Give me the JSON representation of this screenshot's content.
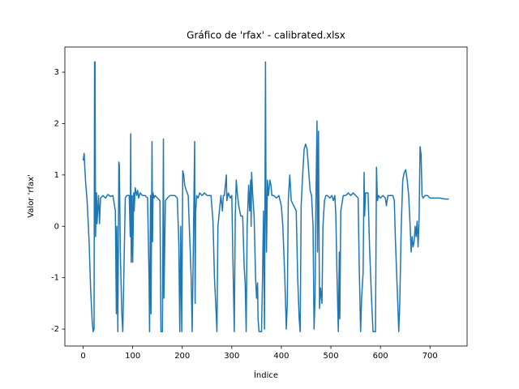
{
  "chart_data": {
    "type": "line",
    "title": "Gráfico de 'rfax' - calibrated.xlsx",
    "xlabel": "Índice",
    "ylabel": "Valor 'rfax'",
    "xlim": [
      -36.9,
      774.9
    ],
    "ylim": [
      -2.33,
      3.49
    ],
    "xticks": [
      0,
      100,
      200,
      300,
      400,
      500,
      600,
      700
    ],
    "yticks": [
      -2,
      -1,
      0,
      1,
      2,
      3
    ],
    "grid": false,
    "series": [
      {
        "color": "#1f77b4",
        "x": [
          0,
          2,
          3,
          5,
          8,
          12,
          15,
          18,
          20,
          22,
          23,
          24,
          25,
          27,
          28,
          31,
          33,
          35,
          40,
          45,
          50,
          55,
          60,
          65,
          67,
          68,
          70,
          72,
          73,
          75,
          78,
          80,
          85,
          88,
          93,
          95,
          96,
          97,
          99,
          100,
          102,
          103,
          105,
          108,
          110,
          112,
          115,
          120,
          125,
          130,
          133,
          134,
          136,
          137,
          139,
          140,
          141,
          143,
          145,
          150,
          155,
          157,
          160,
          162,
          163,
          166,
          170,
          175,
          180,
          185,
          190,
          193,
          195,
          197,
          199,
          201,
          203,
          205,
          208,
          212,
          215,
          218,
          220,
          222,
          225,
          226,
          227,
          229,
          232,
          235,
          240,
          245,
          250,
          255,
          258,
          262,
          265,
          268,
          270,
          272,
          275,
          278,
          281,
          283,
          285,
          289,
          290,
          293,
          297,
          300,
          302,
          305,
          307,
          309,
          311,
          314,
          318,
          322,
          325,
          327,
          329,
          331,
          334,
          336,
          338,
          339,
          340,
          342,
          345,
          348,
          350,
          352,
          353,
          355,
          360,
          362,
          364,
          366,
          368,
          369,
          370,
          372,
          374,
          377,
          379,
          381,
          385,
          390,
          395,
          400,
          403,
          407,
          410,
          412,
          414,
          417,
          420,
          425,
          430,
          433,
          436,
          438,
          440,
          443,
          446,
          449,
          452,
          455,
          458,
          461,
          464,
          466,
          468,
          470,
          472,
          473,
          475,
          476,
          477,
          479,
          482,
          484,
          487,
          490,
          493,
          498,
          502,
          505,
          508,
          510,
          512,
          515,
          517,
          518,
          520,
          525,
          530,
          535,
          540,
          545,
          550,
          555,
          557,
          560,
          562,
          565,
          567,
          568,
          570,
          575,
          578,
          582,
          585,
          590,
          592,
          594,
          596,
          600,
          605,
          610,
          612,
          615,
          620,
          625,
          628,
          630,
          633,
          635,
          637,
          639,
          642,
          645,
          648,
          651,
          654,
          657,
          660,
          662,
          664,
          666,
          668,
          670,
          672,
          674,
          676,
          678,
          680,
          682,
          684,
          686,
          690,
          695,
          700,
          705,
          710,
          720,
          730,
          738
        ],
        "values": [
          1.28,
          1.42,
          1.2,
          0.85,
          0.5,
          -0.3,
          -1.2,
          -1.8,
          -2.05,
          -2.0,
          3.2,
          3.2,
          -0.2,
          0.65,
          0.05,
          0.6,
          0.05,
          0.55,
          0.6,
          0.55,
          0.62,
          0.58,
          0.6,
          0.3,
          -1.7,
          0.0,
          -2.05,
          1.25,
          1.2,
          -0.5,
          -1.7,
          -2.05,
          0.55,
          0.6,
          0.6,
          -0.2,
          1.8,
          -0.7,
          0.6,
          -0.7,
          0.65,
          0.3,
          0.75,
          0.6,
          0.7,
          0.55,
          0.65,
          0.6,
          0.6,
          0.55,
          -1.0,
          -2.05,
          0.6,
          -1.7,
          1.65,
          -0.3,
          0.65,
          0.55,
          0.6,
          0.55,
          0.5,
          -2.05,
          -2.05,
          1.7,
          -1.4,
          0.5,
          0.55,
          0.6,
          0.6,
          0.6,
          0.55,
          -0.3,
          -2.05,
          0.0,
          -2.05,
          1.08,
          1.0,
          0.8,
          0.7,
          0.6,
          -0.2,
          -1.0,
          -2.05,
          -0.7,
          1.65,
          -1.5,
          0.25,
          0.6,
          0.55,
          0.65,
          0.6,
          0.65,
          0.6,
          0.6,
          0.6,
          0.1,
          -1.0,
          -1.6,
          -2.05,
          0.0,
          0.3,
          0.6,
          0.3,
          0.6,
          0.6,
          1.0,
          0.5,
          0.65,
          0.55,
          0.6,
          -0.5,
          -2.05,
          0.2,
          0.9,
          0.65,
          0.4,
          0.2,
          0.2,
          -0.8,
          -1.1,
          -2.05,
          0.0,
          0.8,
          0.3,
          0.9,
          0.0,
          1.05,
          0.65,
          0.2,
          -1.0,
          -1.4,
          -1.1,
          -1.8,
          -2.05,
          -2.05,
          -1.0,
          0.3,
          -2.0,
          3.2,
          0.6,
          -0.5,
          0.9,
          0.6,
          0.9,
          0.8,
          0.6,
          0.6,
          0.55,
          0.6,
          0.4,
          0.0,
          -1.0,
          -2.0,
          -1.5,
          0.5,
          1.0,
          0.5,
          0.4,
          0.3,
          -1.0,
          -1.8,
          -2.05,
          0.4,
          1.0,
          1.5,
          1.6,
          1.5,
          1.1,
          0.7,
          0.6,
          0.0,
          -2.0,
          -1.4,
          0.7,
          2.05,
          -0.5,
          1.85,
          0.0,
          -1.6,
          -1.2,
          -1.5,
          0.0,
          0.5,
          0.6,
          0.6,
          0.55,
          0.6,
          0.5,
          0.6,
          0.2,
          -0.8,
          -2.05,
          -0.5,
          -1.8,
          0.3,
          0.6,
          0.6,
          0.65,
          0.6,
          0.65,
          0.6,
          0.55,
          -0.7,
          -2.05,
          -1.4,
          -0.9,
          1.05,
          0.2,
          0.65,
          0.65,
          -0.4,
          -1.4,
          -2.05,
          -2.05,
          1.15,
          0.5,
          0.6,
          0.55,
          0.6,
          0.55,
          0.4,
          0.6,
          0.6,
          0.6,
          0.5,
          -0.2,
          -1.0,
          -1.5,
          -2.05,
          -1.5,
          0.0,
          0.9,
          1.05,
          1.1,
          0.9,
          0.6,
          0.0,
          -0.5,
          -0.2,
          -0.4,
          -0.3,
          0.0,
          -0.2,
          0.1,
          -0.4,
          0.15,
          1.55,
          1.4,
          0.6,
          0.55,
          0.6,
          0.6,
          0.55,
          0.55,
          0.55,
          0.55,
          0.53,
          0.53
        ]
      }
    ]
  }
}
